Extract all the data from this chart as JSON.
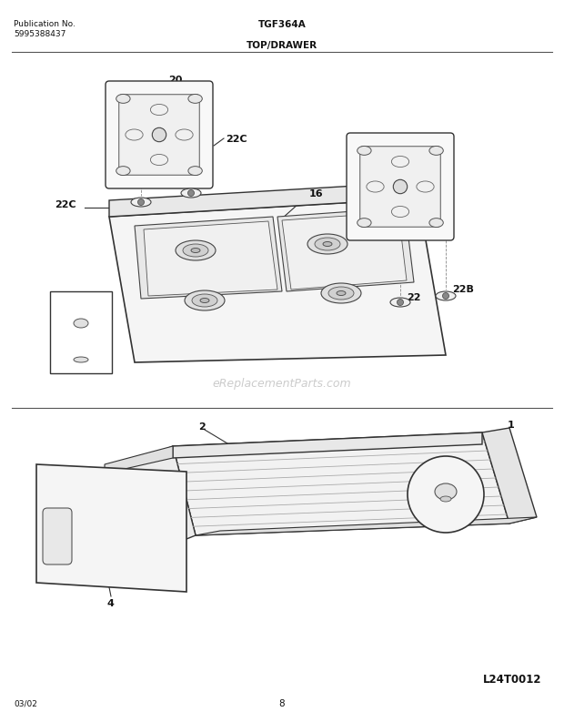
{
  "title_left_line1": "Publication No.",
  "title_left_line2": "5995388437",
  "title_center": "TGF364A",
  "section_label": "TOP/DRAWER",
  "footer_left": "03/02",
  "footer_center": "8",
  "footer_right": "L24T0012",
  "watermark": "eReplacementParts.com",
  "bg_color": "#ffffff"
}
